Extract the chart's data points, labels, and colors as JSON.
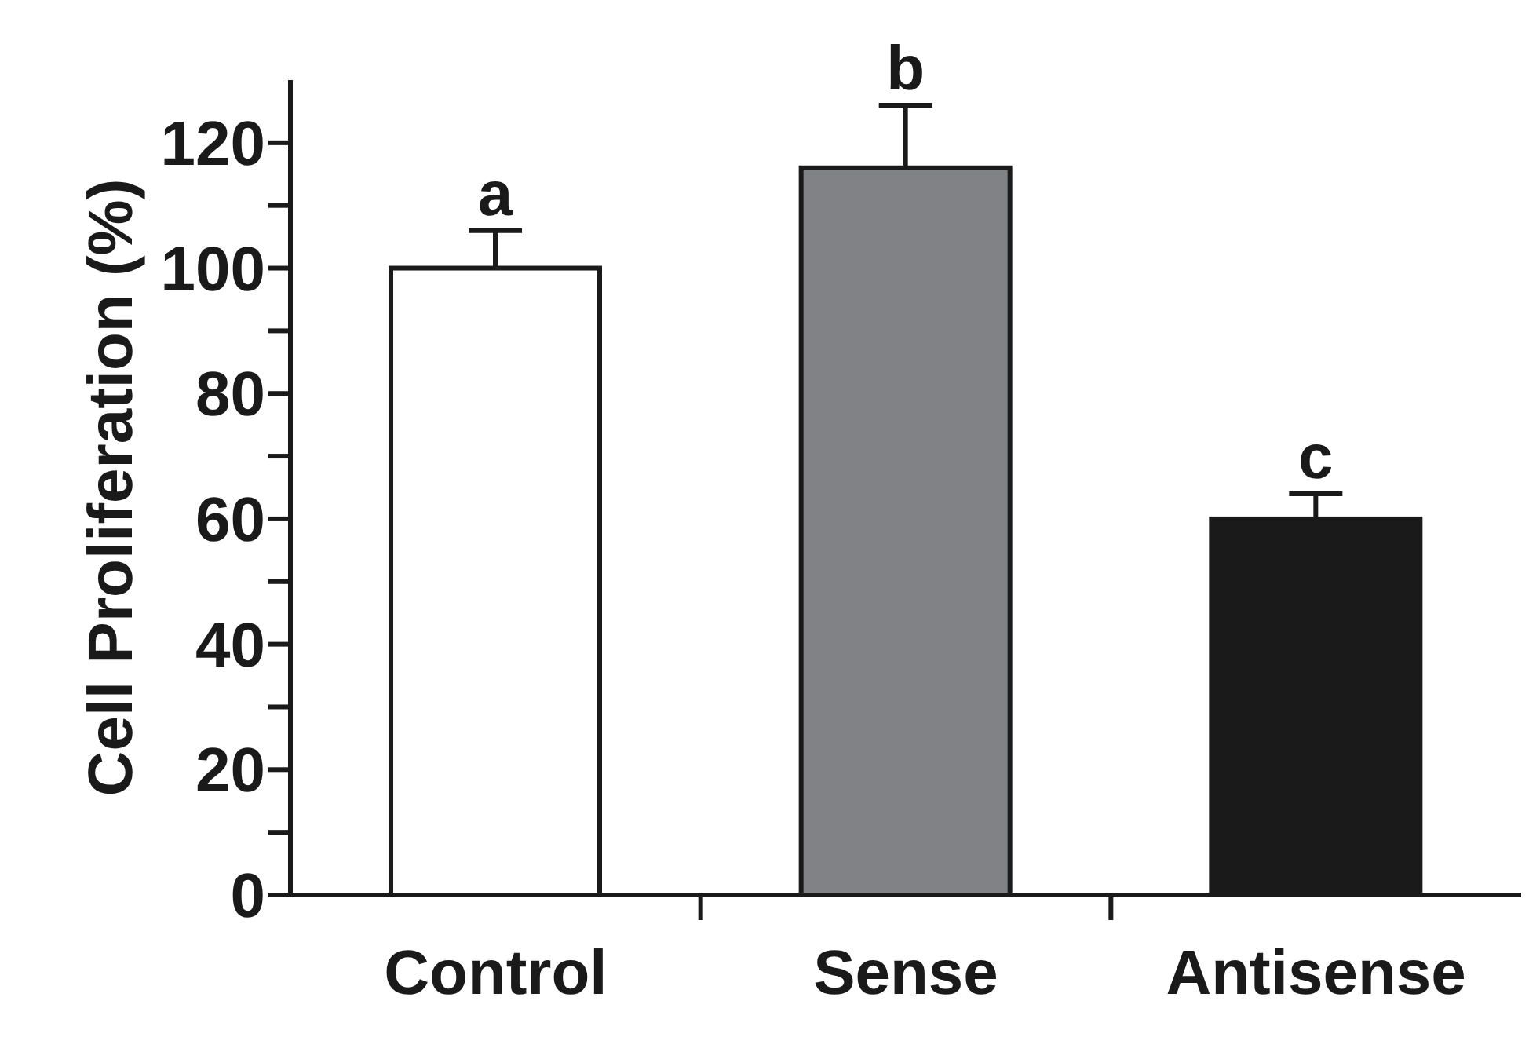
{
  "chart_data": {
    "type": "bar",
    "ylabel": "Cell Proliferation (%)",
    "categories": [
      "Control",
      "Sense",
      "Antisense"
    ],
    "values": [
      100,
      116,
      60
    ],
    "colors": [
      "#ffffff",
      "#808285",
      "#1a1a1a"
    ],
    "errors": [
      [
        100,
        106
      ],
      [
        116,
        126
      ],
      [
        60,
        64
      ]
    ],
    "annotations": [
      "a",
      "b",
      "c"
    ],
    "ylim": [
      0,
      130
    ],
    "yticks": [
      0,
      {
        "value": 10,
        "label": null
      },
      20,
      {
        "value": 30,
        "label": null
      },
      40,
      {
        "value": 50,
        "label": null
      },
      60,
      {
        "value": 70,
        "label": null
      },
      80,
      {
        "value": 90,
        "label": null
      },
      100,
      {
        "value": 110,
        "label": null
      },
      120
    ],
    "grid": false,
    "legend": false
  }
}
